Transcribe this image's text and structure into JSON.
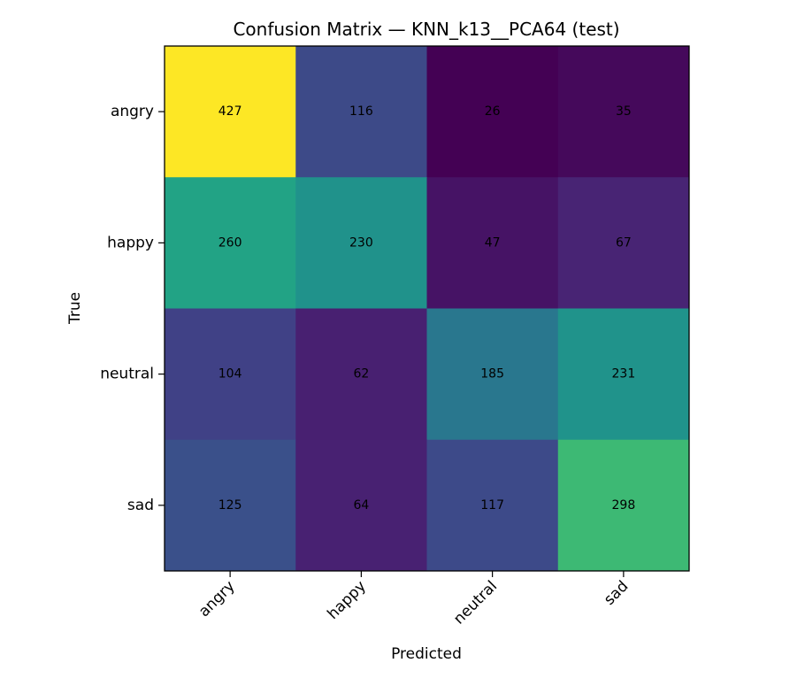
{
  "chart_data": {
    "type": "heatmap",
    "title": "Confusion Matrix — KNN_k13__PCA64 (test)",
    "xlabel": "Predicted",
    "ylabel": "True",
    "x_categories": [
      "angry",
      "happy",
      "neutral",
      "sad"
    ],
    "y_categories": [
      "angry",
      "happy",
      "neutral",
      "sad"
    ],
    "values": [
      [
        427,
        116,
        26,
        35
      ],
      [
        260,
        230,
        47,
        67
      ],
      [
        104,
        62,
        185,
        231
      ],
      [
        125,
        64,
        117,
        298
      ]
    ],
    "colormap": "viridis",
    "vmin": 26,
    "vmax": 427
  }
}
